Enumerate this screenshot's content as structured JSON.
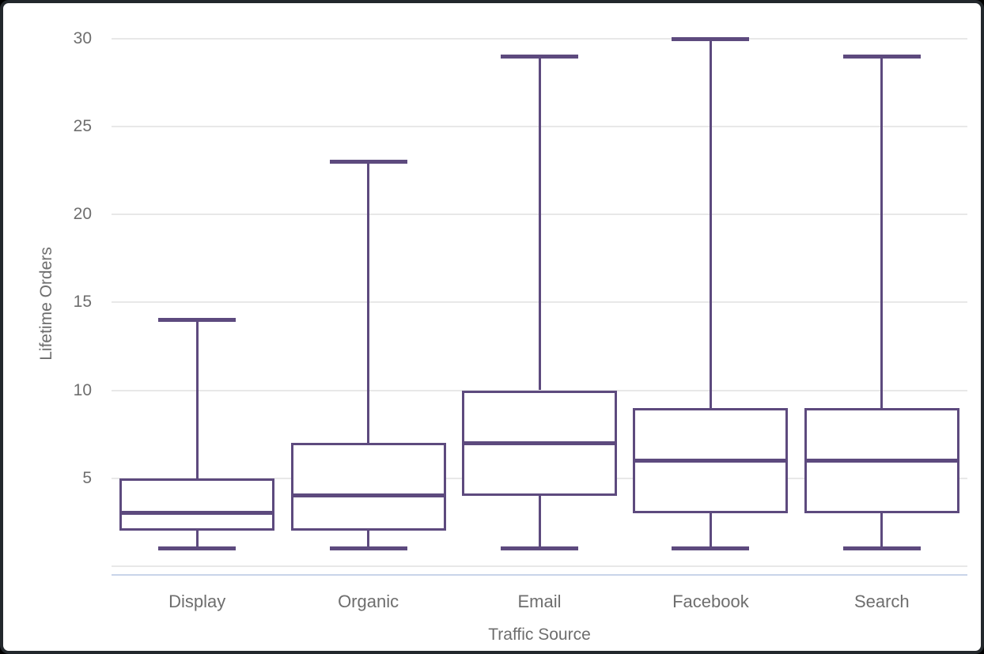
{
  "chart_data": {
    "type": "boxplot",
    "title": "",
    "xlabel": "Traffic Source",
    "ylabel": "Lifetime Orders",
    "categories": [
      "Display",
      "Organic",
      "Email",
      "Facebook",
      "Search"
    ],
    "series": [
      {
        "category": "Display",
        "min": 1,
        "q1": 2,
        "median": 3,
        "q3": 5,
        "max": 14
      },
      {
        "category": "Organic",
        "min": 1,
        "q1": 2,
        "median": 4,
        "q3": 7,
        "max": 23
      },
      {
        "category": "Email",
        "min": 1,
        "q1": 4,
        "median": 7,
        "q3": 10,
        "max": 29
      },
      {
        "category": "Facebook",
        "min": 1,
        "q1": 3,
        "median": 6,
        "q3": 9,
        "max": 30
      },
      {
        "category": "Search",
        "min": 1,
        "q1": 3,
        "median": 6,
        "q3": 9,
        "max": 29
      }
    ],
    "yticks": [
      5,
      10,
      15,
      20,
      25,
      30
    ],
    "ylim": [
      0,
      30.5
    ],
    "grid": true,
    "legend": false,
    "colors": {
      "box_stroke": "#5d4a7e",
      "gridline": "#e8e8e8",
      "axis_line": "#c9d4e9",
      "text": "#6e6e6e",
      "frame_border": "#23282c",
      "background": "#ffffff"
    }
  }
}
